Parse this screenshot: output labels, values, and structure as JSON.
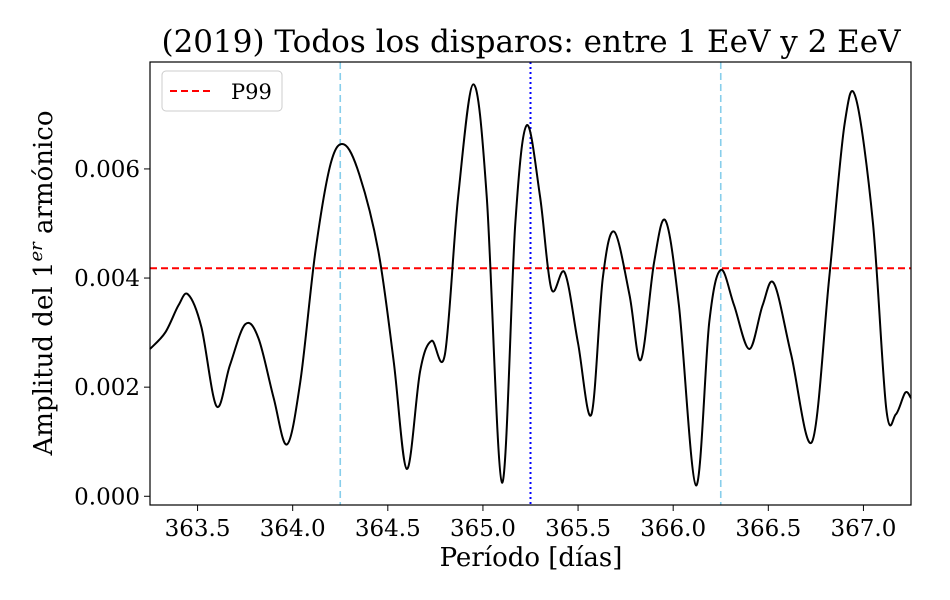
{
  "chart_data": {
    "type": "line",
    "title": "(2019) Todos los disparos: entre 1 EeV y 2 EeV",
    "xlabel": "Período [días]",
    "ylabel_main": "Amplitud del 1",
    "ylabel_sup": "er",
    "ylabel_tail": " armónico",
    "xlim": [
      363.25,
      367.25
    ],
    "ylim": [
      -0.00016,
      0.00796
    ],
    "x_ticks": [
      363.5,
      364.0,
      364.5,
      365.0,
      365.5,
      366.0,
      366.5,
      367.0
    ],
    "x_tick_labels": [
      "363.5",
      "364.0",
      "364.5",
      "365.0",
      "365.5",
      "366.0",
      "366.5",
      "367.0"
    ],
    "y_ticks": [
      0.0,
      0.002,
      0.004,
      0.006
    ],
    "y_tick_labels": [
      "0.000",
      "0.002",
      "0.004",
      "0.006"
    ],
    "legend": {
      "position": "upper-left",
      "entries": [
        {
          "label": "P99",
          "style": "dashed",
          "color": "#ff0000"
        }
      ]
    },
    "threshold": {
      "name": "P99",
      "value": 0.00418,
      "color": "#ff0000"
    },
    "vlines": [
      {
        "x": 364.25,
        "color": "#87ceeb",
        "style": "dashed"
      },
      {
        "x": 365.25,
        "color": "#0000ff",
        "style": "dotted"
      },
      {
        "x": 366.25,
        "color": "#87ceeb",
        "style": "dashed"
      }
    ],
    "series": [
      {
        "color": "#000000",
        "points": [
          [
            363.25,
            0.0027
          ],
          [
            363.33,
            0.003
          ],
          [
            363.4,
            0.0035
          ],
          [
            363.45,
            0.0037
          ],
          [
            363.52,
            0.0031
          ],
          [
            363.6,
            0.00165
          ],
          [
            363.67,
            0.0024
          ],
          [
            363.75,
            0.00315
          ],
          [
            363.82,
            0.0029
          ],
          [
            363.9,
            0.0018
          ],
          [
            363.97,
            0.00095
          ],
          [
            364.04,
            0.0021
          ],
          [
            364.12,
            0.0045
          ],
          [
            364.2,
            0.0061
          ],
          [
            364.27,
            0.00645
          ],
          [
            364.35,
            0.0059
          ],
          [
            364.45,
            0.0045
          ],
          [
            364.53,
            0.0025
          ],
          [
            364.6,
            0.0005
          ],
          [
            364.67,
            0.0023
          ],
          [
            364.73,
            0.00285
          ],
          [
            364.8,
            0.0026
          ],
          [
            364.87,
            0.0055
          ],
          [
            364.95,
            0.00755
          ],
          [
            365.02,
            0.0055
          ],
          [
            365.1,
            0.00025
          ],
          [
            365.17,
            0.005
          ],
          [
            365.23,
            0.0068
          ],
          [
            365.3,
            0.0055
          ],
          [
            365.36,
            0.0038
          ],
          [
            365.43,
            0.0041
          ],
          [
            365.5,
            0.0028
          ],
          [
            365.57,
            0.0015
          ],
          [
            365.63,
            0.004
          ],
          [
            365.69,
            0.00485
          ],
          [
            365.77,
            0.0037
          ],
          [
            365.83,
            0.0025
          ],
          [
            365.9,
            0.0043
          ],
          [
            365.96,
            0.00505
          ],
          [
            366.03,
            0.0035
          ],
          [
            366.12,
            0.0002
          ],
          [
            366.19,
            0.0032
          ],
          [
            366.25,
            0.00415
          ],
          [
            366.32,
            0.0035
          ],
          [
            366.4,
            0.0027
          ],
          [
            366.47,
            0.0035
          ],
          [
            366.53,
            0.0039
          ],
          [
            366.62,
            0.0026
          ],
          [
            366.73,
            0.001
          ],
          [
            366.82,
            0.004
          ],
          [
            366.9,
            0.0068
          ],
          [
            366.96,
            0.0073
          ],
          [
            367.05,
            0.005
          ],
          [
            367.12,
            0.0016
          ],
          [
            367.17,
            0.0015
          ],
          [
            367.22,
            0.0019
          ],
          [
            367.25,
            0.0018
          ]
        ]
      }
    ]
  }
}
